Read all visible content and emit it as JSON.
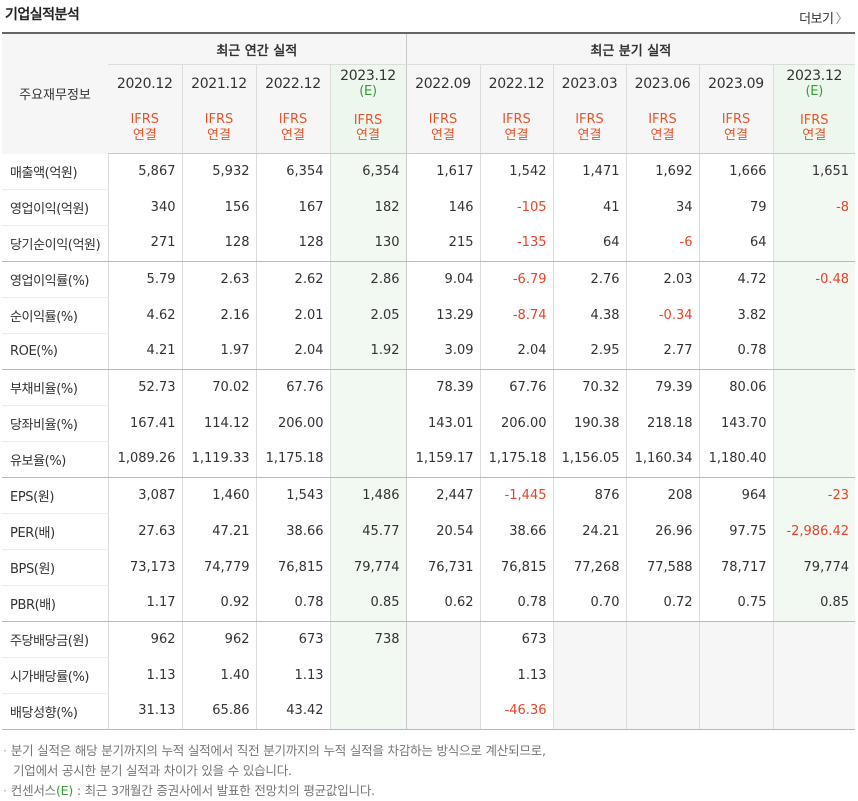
{
  "header": {
    "title": "기업실적분석",
    "more_label": "더보기",
    "more_icon": "chevron-right"
  },
  "table": {
    "row_header": "주요재무정보",
    "group_annual": "최근 연간 실적",
    "group_quarter": "최근 분기 실적",
    "periods": [
      "2020.12",
      "2021.12",
      "2022.12",
      "2023.12",
      "2022.09",
      "2022.12",
      "2023.03",
      "2023.06",
      "2023.09",
      "2023.12"
    ],
    "estimate_mark": "(E)",
    "standard_top": "IFRS",
    "standard_bottom": "연결",
    "rows": [
      {
        "label": "매출액(억원)",
        "values": [
          "5,867",
          "5,932",
          "6,354",
          "6,354",
          "1,617",
          "1,542",
          "1,471",
          "1,692",
          "1,666",
          "1,651"
        ]
      },
      {
        "label": "영업이익(억원)",
        "values": [
          "340",
          "156",
          "167",
          "182",
          "146",
          "-105",
          "41",
          "34",
          "79",
          "-8"
        ]
      },
      {
        "label": "당기순이익(억원)",
        "values": [
          "271",
          "128",
          "128",
          "130",
          "215",
          "-135",
          "64",
          "-6",
          "64",
          ""
        ]
      },
      {
        "label": "영업이익률(%)",
        "values": [
          "5.79",
          "2.63",
          "2.62",
          "2.86",
          "9.04",
          "-6.79",
          "2.76",
          "2.03",
          "4.72",
          "-0.48"
        ]
      },
      {
        "label": "순이익률(%)",
        "values": [
          "4.62",
          "2.16",
          "2.01",
          "2.05",
          "13.29",
          "-8.74",
          "4.38",
          "-0.34",
          "3.82",
          ""
        ]
      },
      {
        "label": "ROE(%)",
        "values": [
          "4.21",
          "1.97",
          "2.04",
          "1.92",
          "3.09",
          "2.04",
          "2.95",
          "2.77",
          "0.78",
          ""
        ]
      },
      {
        "label": "부채비율(%)",
        "values": [
          "52.73",
          "70.02",
          "67.76",
          "",
          "78.39",
          "67.76",
          "70.32",
          "79.39",
          "80.06",
          ""
        ]
      },
      {
        "label": "당좌비율(%)",
        "values": [
          "167.41",
          "114.12",
          "206.00",
          "",
          "143.01",
          "206.00",
          "190.38",
          "218.18",
          "143.70",
          ""
        ]
      },
      {
        "label": "유보율(%)",
        "values": [
          "1,089.26",
          "1,119.33",
          "1,175.18",
          "",
          "1,159.17",
          "1,175.18",
          "1,156.05",
          "1,160.34",
          "1,180.40",
          ""
        ]
      },
      {
        "label": "EPS(원)",
        "values": [
          "3,087",
          "1,460",
          "1,543",
          "1,486",
          "2,447",
          "-1,445",
          "876",
          "208",
          "964",
          "-23"
        ]
      },
      {
        "label": "PER(배)",
        "values": [
          "27.63",
          "47.21",
          "38.66",
          "45.77",
          "20.54",
          "38.66",
          "24.21",
          "26.96",
          "97.75",
          "-2,986.42"
        ]
      },
      {
        "label": "BPS(원)",
        "values": [
          "73,173",
          "74,779",
          "76,815",
          "79,774",
          "76,731",
          "76,815",
          "77,268",
          "77,588",
          "78,717",
          "79,774"
        ]
      },
      {
        "label": "PBR(배)",
        "values": [
          "1.17",
          "0.92",
          "0.78",
          "0.85",
          "0.62",
          "0.78",
          "0.70",
          "0.72",
          "0.75",
          "0.85"
        ]
      },
      {
        "label": "주당배당금(원)",
        "values": [
          "962",
          "962",
          "673",
          "738",
          "",
          "673",
          "",
          "",
          "",
          ""
        ]
      },
      {
        "label": "시가배당률(%)",
        "values": [
          "1.13",
          "1.40",
          "1.13",
          "",
          "",
          "1.13",
          "",
          "",
          "",
          ""
        ]
      },
      {
        "label": "배당성향(%)",
        "values": [
          "31.13",
          "65.86",
          "43.42",
          "",
          "",
          "-46.36",
          "",
          "",
          "",
          ""
        ]
      }
    ]
  },
  "notes": {
    "line1": "분기 실적은 해당 분기까지의 누적 실적에서 직전 분기까지의 누적 실적을 차감하는 방식으로 계산되므로,",
    "line2": "기업에서 공시한 분기 실적과 차이가 있을 수 있습니다.",
    "line3_pre": "컨센서스",
    "line3_e": "(E)",
    "line3_post": " : 최근 3개월간 증권사에서 발표한 전망치의 평균값입니다."
  },
  "colors": {
    "negative": "#e5442a",
    "ifrs": "#e5562e",
    "estimate_bg": "#eef7ee",
    "estimate_mark": "#3a9a3a"
  }
}
